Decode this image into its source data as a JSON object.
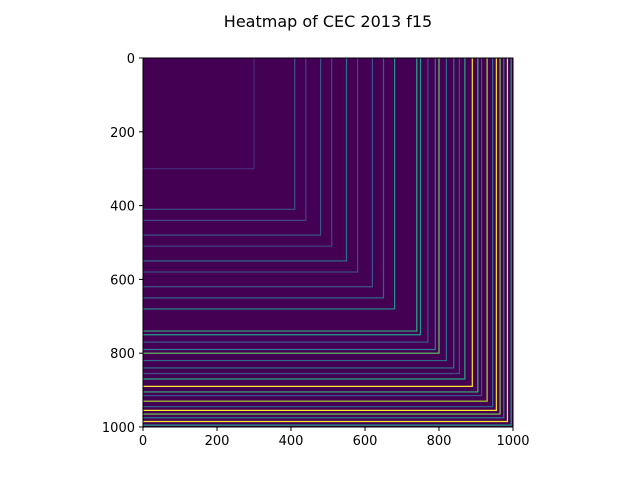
{
  "chart_data": {
    "type": "heatmap",
    "title": "Heatmap of CEC 2013 f15",
    "xlabel": "",
    "ylabel": "",
    "xlim": [
      0,
      1000
    ],
    "ylim": [
      1000,
      0
    ],
    "x_ticks": [
      "0",
      "200",
      "400",
      "600",
      "800",
      "1000"
    ],
    "y_ticks": [
      "0",
      "200",
      "400",
      "600",
      "800",
      "1000"
    ],
    "colormap": "viridis",
    "background_value_color": "#440154",
    "pattern": "L-shaped level sets: cell (i,j) value depends on max(i,j); bright values concentrate near index 1000",
    "lines": [
      {
        "pos": 300,
        "color": "#472c7a"
      },
      {
        "pos": 410,
        "color": "#3b528b"
      },
      {
        "pos": 440,
        "color": "#433e85"
      },
      {
        "pos": 480,
        "color": "#3b528b"
      },
      {
        "pos": 510,
        "color": "#404688"
      },
      {
        "pos": 550,
        "color": "#2c728e"
      },
      {
        "pos": 580,
        "color": "#3e4989"
      },
      {
        "pos": 620,
        "color": "#3b528b"
      },
      {
        "pos": 650,
        "color": "#355f8d"
      },
      {
        "pos": 680,
        "color": "#21918c"
      },
      {
        "pos": 740,
        "color": "#27ad81"
      },
      {
        "pos": 750,
        "color": "#1f9e89"
      },
      {
        "pos": 770,
        "color": "#3b528b"
      },
      {
        "pos": 790,
        "color": "#2a788e"
      },
      {
        "pos": 800,
        "color": "#5ec962"
      },
      {
        "pos": 820,
        "color": "#31688e"
      },
      {
        "pos": 840,
        "color": "#2a788e"
      },
      {
        "pos": 855,
        "color": "#3b528b"
      },
      {
        "pos": 870,
        "color": "#22a884"
      },
      {
        "pos": 890,
        "color": "#fde725"
      },
      {
        "pos": 905,
        "color": "#35b779"
      },
      {
        "pos": 915,
        "color": "#3b528b"
      },
      {
        "pos": 930,
        "color": "#addc30"
      },
      {
        "pos": 945,
        "color": "#31688e"
      },
      {
        "pos": 955,
        "color": "#fde725"
      },
      {
        "pos": 965,
        "color": "#7ad151"
      },
      {
        "pos": 975,
        "color": "#2a788e"
      },
      {
        "pos": 985,
        "color": "#fde725"
      },
      {
        "pos": 995,
        "color": "#1f9e89"
      }
    ]
  }
}
